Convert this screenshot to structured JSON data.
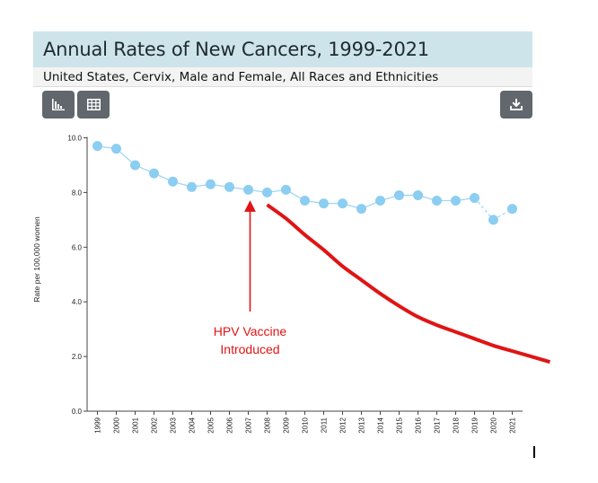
{
  "header": {
    "title": "Annual Rates of New Cancers, 1999-2021",
    "subtitle": "United States, Cervix, Male and Female, All Races and Ethnicities"
  },
  "toolbar": {
    "chart_icon": "bar-chart-icon",
    "table_icon": "table-grid-icon",
    "download_icon": "download-icon"
  },
  "colors": {
    "series": "#8ccdf2",
    "series_line": "#9fd6f5",
    "annotation": "#e01414",
    "button": "#62676d"
  },
  "chart_data": {
    "type": "line",
    "ylabel": "Rate per 100,000 women",
    "xlabel": "",
    "ylim": [
      0,
      10
    ],
    "yticks": [
      "0.0",
      "2.0",
      "4.0",
      "6.0",
      "8.0",
      "10.0"
    ],
    "categories": [
      "1999",
      "2000",
      "2001",
      "2002",
      "2003",
      "2004",
      "2005",
      "2006",
      "2007",
      "2008",
      "2009",
      "2010",
      "2011",
      "2012",
      "2013",
      "2014",
      "2015",
      "2016",
      "2017",
      "2018",
      "2019",
      "2020",
      "2021"
    ],
    "series": [
      {
        "name": "Cervix",
        "values": [
          9.7,
          9.6,
          9.0,
          8.7,
          8.4,
          8.2,
          8.3,
          8.2,
          8.1,
          8.0,
          8.1,
          7.7,
          7.6,
          7.6,
          7.4,
          7.7,
          7.9,
          7.9,
          7.7,
          7.7,
          7.8,
          7.0,
          7.4
        ],
        "dashed_segments": [
          "2019-2020",
          "2020-2021"
        ]
      }
    ],
    "trend_overlay": {
      "x": [
        2008,
        2009,
        2010,
        2011,
        2012,
        2013,
        2014,
        2015,
        2016,
        2017,
        2018,
        2019,
        2020,
        2021,
        2022,
        2023
      ],
      "values": [
        7.55,
        7.05,
        6.45,
        5.9,
        5.3,
        4.8,
        4.3,
        3.85,
        3.45,
        3.15,
        2.9,
        2.65,
        2.4,
        2.2,
        2.0,
        1.8
      ]
    },
    "annotation": {
      "line1": "HPV Vaccine",
      "line2": "Introduced",
      "arrow_year": 2007,
      "arrow_value": 7.7
    }
  }
}
